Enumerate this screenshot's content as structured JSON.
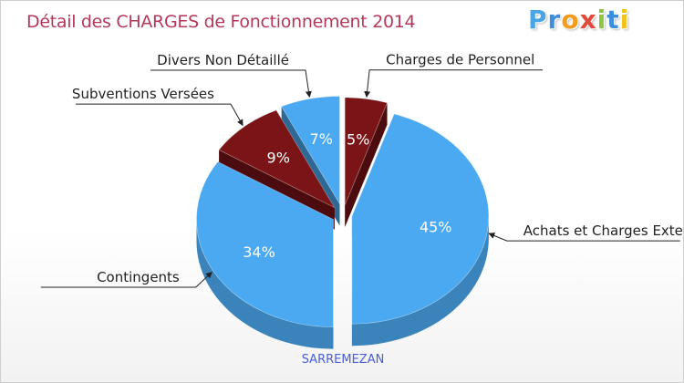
{
  "header": {
    "title": "Détail des CHARGES de Fonctionnement 2014",
    "logo_letters": [
      "P",
      "r",
      "o",
      "x",
      "i",
      "t",
      "i"
    ],
    "logo_colors": [
      "#4aa5e6",
      "#3d8fdb",
      "#f29b1c",
      "#e24b3a",
      "#8cc63e",
      "#3d8fdb",
      "#f2c319"
    ]
  },
  "commune": "SARREMEZAN",
  "chart_data": {
    "type": "pie",
    "title": "Détail des CHARGES de Fonctionnement 2014",
    "subtitle": "SARREMEZAN",
    "exploded": true,
    "three_d": true,
    "slices": [
      {
        "label": "Charges de Personnel",
        "value": 5,
        "percent_label": "5%",
        "color": "#7a1416"
      },
      {
        "label": "Achats et Charges Externes",
        "value": 45,
        "percent_label": "45%",
        "color": "#4aa9f0"
      },
      {
        "label": "Contingents",
        "value": 34,
        "percent_label": "34%",
        "color": "#4aa9f0"
      },
      {
        "label": "Subventions Versées",
        "value": 9,
        "percent_label": "9%",
        "color": "#7a1416"
      },
      {
        "label": "Divers Non Détaillé",
        "value": 7,
        "percent_label": "7%",
        "color": "#4aa9f0"
      }
    ]
  }
}
